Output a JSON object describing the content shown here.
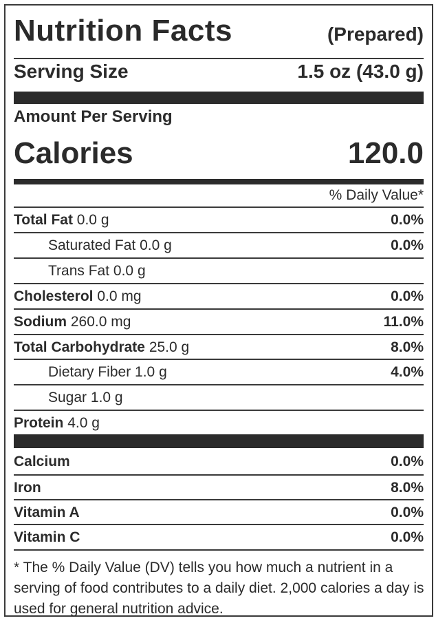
{
  "label": {
    "title": "Nutrition Facts",
    "title_note": "(Prepared)",
    "serving_size_label": "Serving Size",
    "serving_size_value": "1.5 oz (43.0 g)",
    "amount_per_serving": "Amount Per Serving",
    "calories_label": "Calories",
    "calories_value": "120.0",
    "daily_value_header": "% Daily Value*",
    "nutrients": [
      {
        "name": "Total Fat",
        "amount": "0.0 g",
        "dv": "0.0%"
      },
      {
        "name": "Saturated Fat",
        "amount": "0.0 g",
        "dv": "0.0%"
      },
      {
        "name": "Trans Fat",
        "amount": "0.0 g",
        "dv": ""
      },
      {
        "name": "Cholesterol",
        "amount": "0.0 mg",
        "dv": "0.0%"
      },
      {
        "name": "Sodium",
        "amount": "260.0 mg",
        "dv": "11.0%"
      },
      {
        "name": "Total Carbohydrate",
        "amount": "25.0 g",
        "dv": "8.0%"
      },
      {
        "name": "Dietary Fiber",
        "amount": "1.0 g",
        "dv": "4.0%"
      },
      {
        "name": "Sugar",
        "amount": "1.0 g",
        "dv": ""
      },
      {
        "name": "Protein",
        "amount": "4.0 g",
        "dv": ""
      }
    ],
    "vitamins": [
      {
        "name": "Calcium",
        "dv": "0.0%"
      },
      {
        "name": "Iron",
        "dv": "8.0%"
      },
      {
        "name": "Vitamin A",
        "dv": "0.0%"
      },
      {
        "name": "Vitamin C",
        "dv": "0.0%"
      }
    ],
    "footnote": "* The % Daily Value (DV) tells you how much a nutrient in a serving of food contributes to a daily diet. 2,000 calories a day is used for general nutrition advice."
  }
}
